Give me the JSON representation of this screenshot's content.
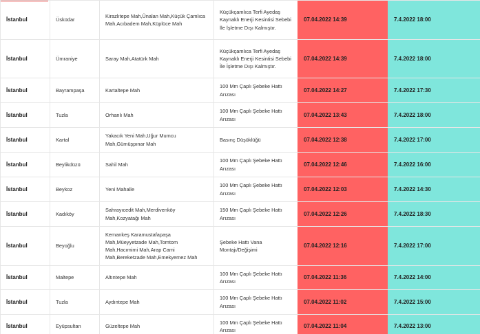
{
  "rows": [
    {
      "city": "İstanbul",
      "district": "Üsküdar",
      "neighborhoods": "Kirazlıtepe Mah,Ünalan Mah,Küçük Çamlıca Mah,Acıbadem Mah,Küplüce Mah",
      "reason": "Küçükçamlıca Terfi Ayedaş Kaynaklı Enerji Kesintisi Sebebi İle İşletme Dışı Kalmıştır.",
      "start": "07.04.2022 14:39",
      "end": "7.4.2022 18:00"
    },
    {
      "city": "İstanbul",
      "district": "Ümraniye",
      "neighborhoods": "Saray Mah,Atatürk Mah",
      "reason": "Küçükçamlıca Terfi Ayedaş Kaynaklı Enerji Kesintisi Sebebi İle İşletme Dışı Kalmıştır.",
      "start": "07.04.2022 14:39",
      "end": "7.4.2022 18:00"
    },
    {
      "city": "İstanbul",
      "district": "Bayrampaşa",
      "neighborhoods": "Kartaltepe Mah",
      "reason": "100 Mm Çaplı Şebeke Hattı Arızası",
      "start": "07.04.2022 14:27",
      "end": "7.4.2022 17:30"
    },
    {
      "city": "İstanbul",
      "district": "Tuzla",
      "neighborhoods": "Orhanlı Mah",
      "reason": "100 Mm Çaplı Şebeke Hattı Arızası",
      "start": "07.04.2022 13:43",
      "end": "7.4.2022 18:00"
    },
    {
      "city": "İstanbul",
      "district": "Kartal",
      "neighborhoods": "Yakacık Yeni Mah,Uğur Mumcu Mah,Gümüşpınar Mah",
      "reason": "Basınç Düşüklüğü",
      "start": "07.04.2022 12:38",
      "end": "7.4.2022 17:00"
    },
    {
      "city": "İstanbul",
      "district": "Beylikdüzü",
      "neighborhoods": "Sahil Mah",
      "reason": "100 Mm Çaplı Şebeke Hattı Arızası",
      "start": "07.04.2022 12:46",
      "end": "7.4.2022 16:00"
    },
    {
      "city": "İstanbul",
      "district": "Beykoz",
      "neighborhoods": "Yeni Mahalle",
      "reason": "100 Mm Çaplı Şebeke Hattı Arızası",
      "start": "07.04.2022 12:03",
      "end": "7.4.2022 14:30"
    },
    {
      "city": "İstanbul",
      "district": "Kadıköy",
      "neighborhoods": "Sahrayıcedit Mah,Merdivenköy Mah,Kozyatağı Mah",
      "reason": "150 Mm Çaplı Şebeke Hattı Arızası",
      "start": "07.04.2022 12:26",
      "end": "7.4.2022 18:30"
    },
    {
      "city": "İstanbul",
      "district": "Beyoğlu",
      "neighborhoods": "Kemankeş Karamustafapaşa Mah,Müeyyetzade Mah,Tomtom Mah,Hacımimi Mah,Arap Cami Mah,Bereketzade Mah,Emekyemez Mah",
      "reason": "Şebeke Hattı Vana Montajı/Değişimi",
      "start": "07.04.2022 12:16",
      "end": "7.4.2022 17:00"
    },
    {
      "city": "İstanbul",
      "district": "Maltepe",
      "neighborhoods": "Altıntepe Mah",
      "reason": "100 Mm Çaplı Şebeke Hattı Arızası",
      "start": "07.04.2022 11:36",
      "end": "7.4.2022 14:00"
    },
    {
      "city": "İstanbul",
      "district": "Tuzla",
      "neighborhoods": "Aydıntepe Mah",
      "reason": "100 Mm Çaplı Şebeke Hattı Arızası",
      "start": "07.04.2022 11:02",
      "end": "7.4.2022 15:00"
    },
    {
      "city": "İstanbul",
      "district": "Eyüpsultan",
      "neighborhoods": "Güzeltepe Mah",
      "reason": "100 Mm Çaplı Şebeke Hattı Arızası",
      "start": "07.04.2022 11:04",
      "end": "7.4.2022 13:00"
    }
  ]
}
